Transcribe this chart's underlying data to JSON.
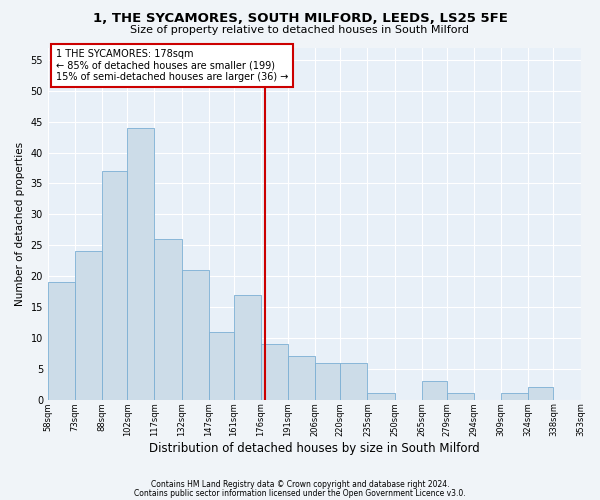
{
  "title1": "1, THE SYCAMORES, SOUTH MILFORD, LEEDS, LS25 5FE",
  "title2": "Size of property relative to detached houses in South Milford",
  "xlabel": "Distribution of detached houses by size in South Milford",
  "ylabel": "Number of detached properties",
  "bar_heights": [
    19,
    24,
    37,
    44,
    26,
    21,
    11,
    17,
    9,
    7,
    6,
    6,
    1,
    0,
    3,
    1,
    0,
    1,
    2,
    0
  ],
  "bin_edges": [
    58,
    73,
    88,
    102,
    117,
    132,
    147,
    161,
    176,
    191,
    206,
    220,
    235,
    250,
    265,
    279,
    294,
    309,
    324,
    338,
    353
  ],
  "tick_labels": [
    "58sqm",
    "73sqm",
    "88sqm",
    "102sqm",
    "117sqm",
    "132sqm",
    "147sqm",
    "161sqm",
    "176sqm",
    "191sqm",
    "206sqm",
    "220sqm",
    "235sqm",
    "250sqm",
    "265sqm",
    "279sqm",
    "294sqm",
    "309sqm",
    "324sqm",
    "338sqm",
    "353sqm"
  ],
  "bar_color": "#ccdce8",
  "bar_edge_color": "#7bafd4",
  "vline_x": 178,
  "vline_color": "#cc0000",
  "annotation_text": "1 THE SYCAMORES: 178sqm\n← 85% of detached houses are smaller (199)\n15% of semi-detached houses are larger (36) →",
  "annotation_box_color": "#cc0000",
  "ylim": [
    0,
    57
  ],
  "yticks": [
    0,
    5,
    10,
    15,
    20,
    25,
    30,
    35,
    40,
    45,
    50,
    55
  ],
  "footer1": "Contains HM Land Registry data © Crown copyright and database right 2024.",
  "footer2": "Contains public sector information licensed under the Open Government Licence v3.0.",
  "bg_color": "#f0f4f8",
  "plot_bg_color": "#e8f0f8",
  "grid_color": "#ffffff",
  "title1_fontsize": 9.5,
  "title2_fontsize": 8,
  "xlabel_fontsize": 8.5,
  "ylabel_fontsize": 7.5,
  "annotation_fontsize": 7,
  "tick_fontsize": 6,
  "ytick_fontsize": 7
}
